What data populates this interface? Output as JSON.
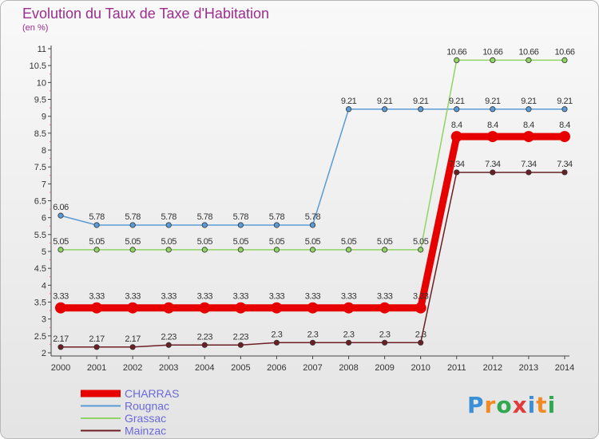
{
  "header": {
    "title": "Evolution du Taux de Taxe d'Habitation",
    "subtitle": "(en %)"
  },
  "logo": {
    "text": "Proxiti",
    "colors": [
      "#3a8fd6",
      "#f08a24",
      "#2fa84f",
      "#e23b3b",
      "#3a8fd6",
      "#f08a24",
      "#2fa84f"
    ]
  },
  "chart_data": {
    "type": "line",
    "title": "Evolution du Taux de Taxe d'Habitation",
    "ylabel": "(en %)",
    "x": [
      "2000",
      "2001",
      "2002",
      "2003",
      "2004",
      "2005",
      "2006",
      "2007",
      "2008",
      "2009",
      "2010",
      "2011",
      "2012",
      "2013",
      "2014"
    ],
    "ylim": [
      2,
      11
    ],
    "yticks": [
      "2",
      "2.5",
      "3",
      "3.5",
      "4",
      "4.5",
      "5",
      "5.5",
      "6",
      "6.5",
      "7",
      "7.5",
      "8",
      "8.5",
      "9",
      "9.5",
      "10",
      "10.5",
      "11"
    ],
    "grid": false,
    "legend_position": "bottom-left",
    "series": [
      {
        "name": "CHARRAS",
        "color": "#e60000",
        "values": [
          3.33,
          3.33,
          3.33,
          3.33,
          3.33,
          3.33,
          3.33,
          3.33,
          3.33,
          3.33,
          3.33,
          8.4,
          8.4,
          8.4,
          8.4
        ],
        "labels": [
          "3.33",
          "3.33",
          "3.33",
          "3.33",
          "3.33",
          "3.33",
          "3.33",
          "3.33",
          "3.33",
          "3.33",
          "3.33",
          "8.4",
          "8.4",
          "8.4",
          "8.4"
        ]
      },
      {
        "name": "Rougnac",
        "color": "#5b9bd5",
        "values": [
          6.06,
          5.78,
          5.78,
          5.78,
          5.78,
          5.78,
          5.78,
          5.78,
          9.21,
          9.21,
          9.21,
          9.21,
          9.21,
          9.21,
          9.21
        ],
        "labels": [
          "6.06",
          "5.78",
          "5.78",
          "5.78",
          "5.78",
          "5.78",
          "5.78",
          "5.78",
          "9.21",
          "9.21",
          "9.21",
          "9.21",
          "9.21",
          "9.21",
          "9.21"
        ]
      },
      {
        "name": "Grassac",
        "color": "#8fd464",
        "values": [
          5.05,
          5.05,
          5.05,
          5.05,
          5.05,
          5.05,
          5.05,
          5.05,
          5.05,
          5.05,
          5.05,
          10.66,
          10.66,
          10.66,
          10.66
        ],
        "labels": [
          "5.05",
          "5.05",
          "5.05",
          "5.05",
          "5.05",
          "5.05",
          "5.05",
          "5.05",
          "5.05",
          "5.05",
          "5.05",
          "10.66",
          "10.66",
          "10.66",
          "10.66"
        ]
      },
      {
        "name": "Mainzac",
        "color": "#6b1f24",
        "values": [
          2.17,
          2.17,
          2.17,
          2.23,
          2.23,
          2.23,
          2.3,
          2.3,
          2.3,
          2.3,
          2.3,
          7.34,
          7.34,
          7.34,
          7.34
        ],
        "labels": [
          "2.17",
          "2.17",
          "2.17",
          "2.23",
          "2.23",
          "2.23",
          "2.3",
          "2.3",
          "2.3",
          "2.3",
          "2.3",
          "7.34",
          "7.34",
          "7.34",
          "7.34"
        ]
      }
    ]
  }
}
